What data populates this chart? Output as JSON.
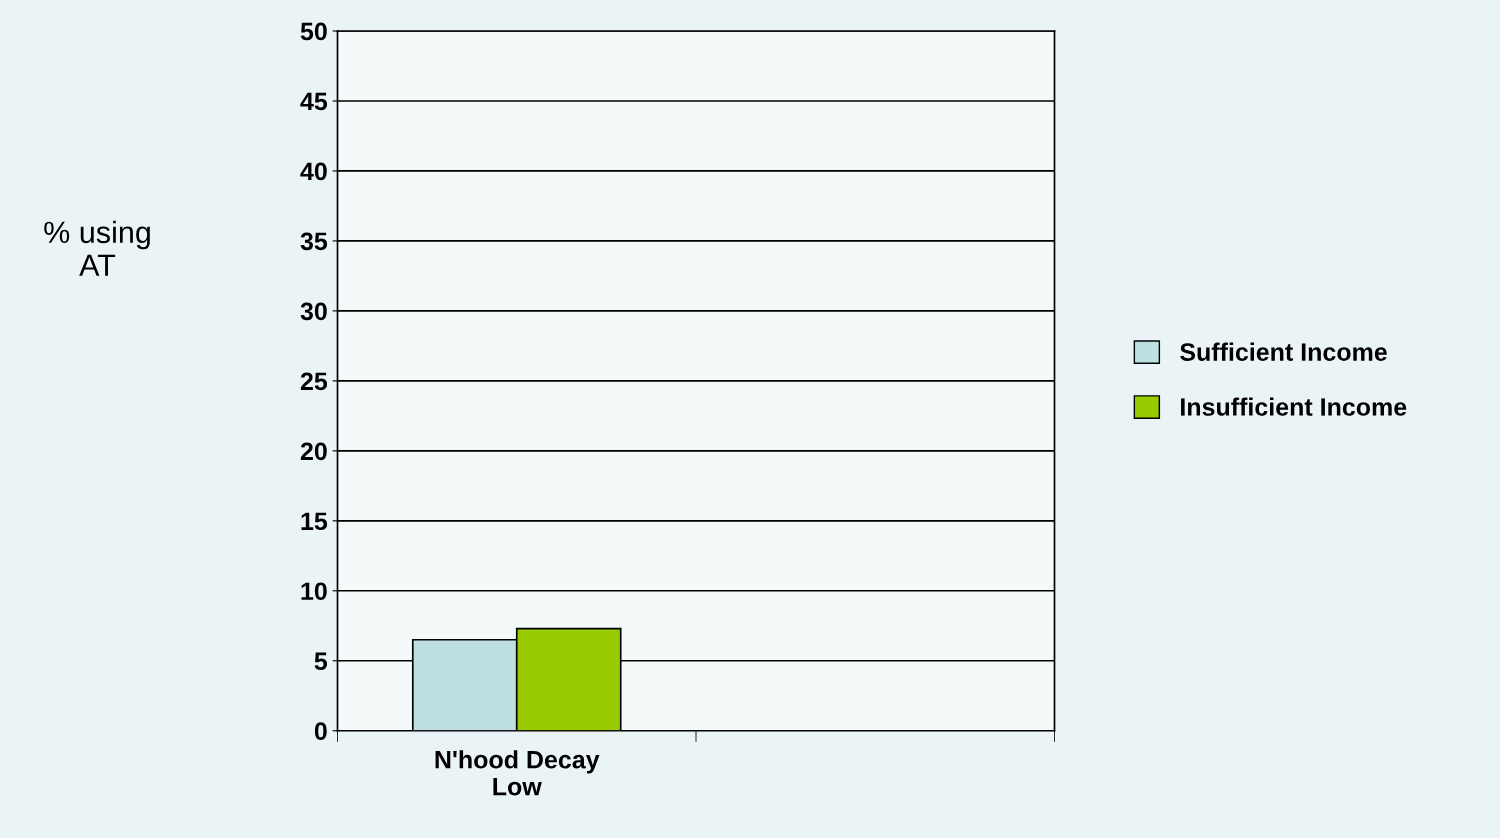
{
  "chart_data": {
    "type": "bar",
    "ylabel": "% using AT",
    "categories": [
      "N'hood Decay Low",
      null
    ],
    "series": [
      {
        "name": "Sufficient Income",
        "color": "#bfe0e3",
        "values": [
          6.5,
          null
        ]
      },
      {
        "name": "Insufficient Income",
        "color": "#99cc00",
        "values": [
          7.3,
          null
        ]
      }
    ],
    "ylim": [
      0,
      50
    ],
    "yticks": [
      0,
      5,
      10,
      15,
      20,
      25,
      30,
      35,
      40,
      45,
      50
    ],
    "grid": "y",
    "legend": "right"
  }
}
